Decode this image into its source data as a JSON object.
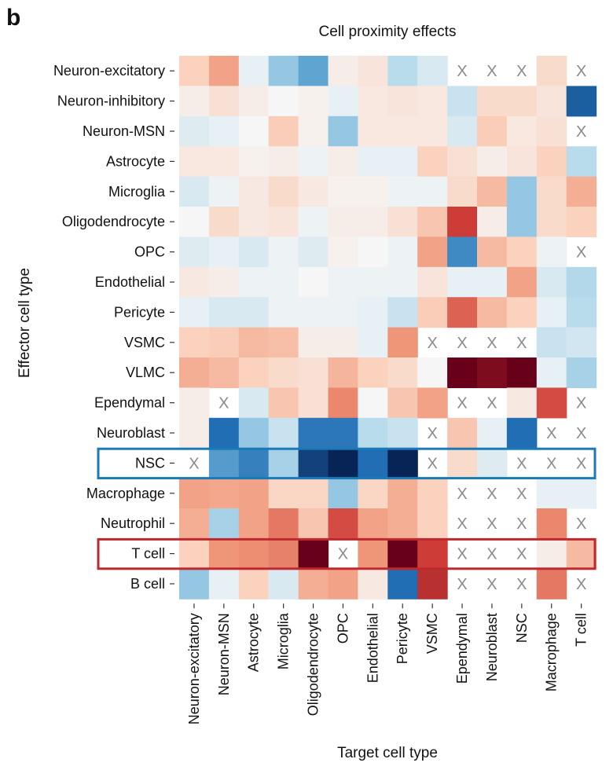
{
  "panel_letter": "b",
  "chart_data": {
    "type": "heatmap",
    "title": "Cell proximity effects",
    "xlabel": "Target cell type",
    "ylabel": "Effector cell type",
    "x_categories": [
      "Neuron-excitatory",
      "Neuron-MSN",
      "Astrocyte",
      "Microglia",
      "Oligodendrocyte",
      "OPC",
      "Endothelial",
      "Pericyte",
      "VSMC",
      "Ependymal",
      "Neuroblast",
      "NSC",
      "Macrophage",
      "T cell"
    ],
    "y_categories": [
      "Neuron-excitatory",
      "Neuron-inhibitory",
      "Neuron-MSN",
      "Astrocyte",
      "Microglia",
      "Oligodendrocyte",
      "OPC",
      "Endothelial",
      "Pericyte",
      "VSMC",
      "VLMC",
      "Ependymal",
      "Neuroblast",
      "NSC",
      "Macrophage",
      "Neutrophil",
      "T cell",
      "B cell"
    ],
    "value_range": [
      -1,
      1
    ],
    "colormap": "red-blue diverging",
    "missing_marker": "X",
    "values": [
      [
        0.2,
        0.4,
        -0.05,
        -0.3,
        -0.45,
        0.05,
        0.1,
        -0.2,
        -0.1,
        null,
        null,
        null,
        0.15,
        null
      ],
      [
        0.05,
        0.12,
        0.05,
        0.0,
        0.03,
        -0.05,
        0.08,
        0.1,
        0.08,
        -0.15,
        0.15,
        0.15,
        0.1,
        -0.8
      ],
      [
        -0.08,
        -0.05,
        0.0,
        0.22,
        0.03,
        -0.3,
        0.08,
        0.08,
        0.08,
        -0.1,
        0.22,
        0.08,
        0.12,
        null
      ],
      [
        0.08,
        0.08,
        0.03,
        0.05,
        -0.03,
        0.05,
        -0.05,
        -0.05,
        0.2,
        0.12,
        0.05,
        0.1,
        0.2,
        -0.2
      ],
      [
        -0.1,
        -0.03,
        0.07,
        0.15,
        0.07,
        0.03,
        0.03,
        -0.03,
        -0.03,
        0.15,
        0.3,
        -0.3,
        0.15,
        0.35
      ],
      [
        0.0,
        0.15,
        0.07,
        0.1,
        -0.03,
        0.05,
        0.05,
        0.12,
        0.25,
        0.75,
        0.05,
        -0.3,
        0.15,
        0.2
      ],
      [
        -0.08,
        -0.05,
        -0.1,
        -0.03,
        -0.08,
        0.03,
        0.0,
        -0.03,
        0.4,
        -0.6,
        0.3,
        0.2,
        -0.03,
        null
      ],
      [
        0.07,
        0.05,
        -0.03,
        -0.03,
        0.0,
        -0.03,
        -0.03,
        -0.03,
        0.1,
        -0.05,
        -0.05,
        0.4,
        -0.1,
        -0.22
      ],
      [
        -0.05,
        -0.1,
        -0.1,
        -0.03,
        -0.03,
        -0.03,
        -0.05,
        -0.15,
        0.22,
        0.62,
        0.3,
        0.2,
        -0.05,
        -0.2
      ],
      [
        0.2,
        0.22,
        0.3,
        0.28,
        0.05,
        0.05,
        -0.05,
        0.45,
        null,
        null,
        null,
        null,
        -0.15,
        -0.12
      ],
      [
        0.35,
        0.3,
        0.2,
        0.15,
        0.12,
        0.32,
        0.2,
        0.15,
        0.0,
        1.0,
        0.95,
        1.0,
        -0.05,
        -0.25
      ],
      [
        0.05,
        null,
        -0.1,
        0.25,
        0.12,
        0.5,
        0.0,
        0.25,
        0.4,
        null,
        null,
        0.07,
        0.7,
        null
      ],
      [
        0.05,
        -0.75,
        -0.3,
        -0.15,
        -0.7,
        -0.7,
        -0.2,
        -0.15,
        null,
        0.25,
        -0.05,
        -0.75,
        null,
        null
      ],
      [
        null,
        -0.5,
        -0.65,
        -0.25,
        -0.9,
        -1.0,
        -0.75,
        -1.0,
        null,
        0.15,
        -0.08,
        null,
        null,
        null
      ],
      [
        0.4,
        0.38,
        0.4,
        0.18,
        0.18,
        -0.3,
        0.18,
        0.35,
        0.2,
        null,
        null,
        null,
        -0.05,
        -0.05
      ],
      [
        0.35,
        -0.25,
        0.4,
        0.55,
        0.25,
        0.7,
        0.4,
        0.35,
        0.2,
        null,
        null,
        null,
        0.5,
        null
      ],
      [
        0.2,
        0.45,
        0.48,
        0.52,
        1.0,
        null,
        0.45,
        1.0,
        0.75,
        null,
        null,
        null,
        0.05,
        0.3
      ],
      [
        -0.3,
        -0.05,
        0.2,
        -0.1,
        0.35,
        0.4,
        0.07,
        -0.75,
        0.8,
        null,
        null,
        null,
        0.55,
        null
      ]
    ],
    "highlighted_rows": [
      {
        "row": "NSC",
        "color": "#1a7ab8"
      },
      {
        "row": "T cell",
        "color": "#c0282f"
      }
    ]
  }
}
